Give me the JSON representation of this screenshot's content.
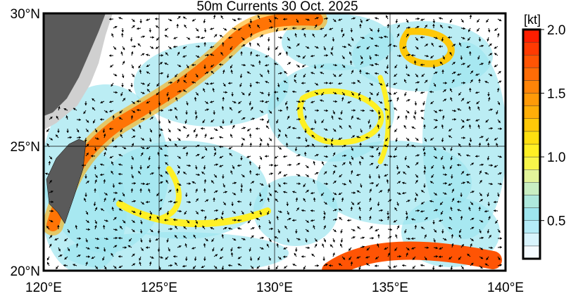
{
  "title": "50m Currents  30 Oct. 2025",
  "map": {
    "lon_range": [
      120,
      140
    ],
    "lat_range": [
      20,
      30
    ],
    "x_ticks": [
      "120°E",
      "125°E",
      "130°E",
      "135°E",
      "140°E"
    ],
    "y_ticks": [
      "20°N",
      "25°N",
      "30°N"
    ],
    "land_color": "#5a5a5a",
    "coast_shade_color": "#d0d0d0"
  },
  "colorbar": {
    "unit": "[kt]",
    "range": [
      0.2,
      2.0
    ],
    "step": 0.1,
    "tick_labels": [
      "2.0",
      "1.5",
      "1.0",
      "0.5"
    ],
    "tick_values": [
      2.0,
      1.5,
      1.0,
      0.5
    ],
    "colors": [
      "#f5fbff",
      "#d8f4fd",
      "#b4ecf8",
      "#9ee6ef",
      "#aee9dd",
      "#c9efc2",
      "#e3f59a",
      "#f8f64a",
      "#fff024",
      "#ffdf10",
      "#ffc808",
      "#ffae08",
      "#ff9a08",
      "#ff8408",
      "#ff6c06",
      "#ff5404",
      "#ff3a02",
      "#ff1e00"
    ]
  }
}
